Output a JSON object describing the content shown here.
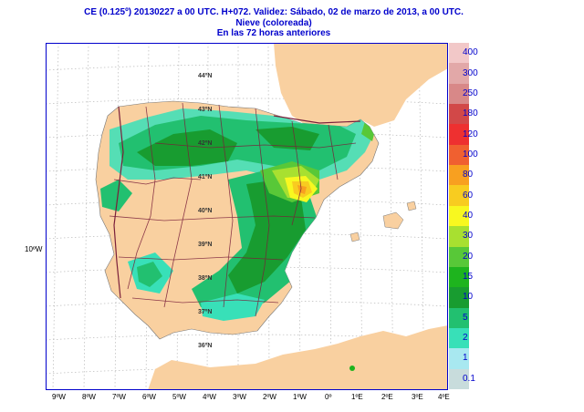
{
  "header": {
    "line1": "CE (0.125º) 20130227 a 00 UTC.  H+072. Validez: Sábado, 02 de marzo de 2013,  a  00 UTC.",
    "line2": "Nieve (coloreada)",
    "line3": "En las 72 horas anteriores"
  },
  "axes": {
    "x_ticks": [
      "9ºW",
      "8ºW",
      "7ºW",
      "6ºW",
      "5ºW",
      "4ºW",
      "3ºW",
      "2ºW",
      "1ºW",
      "0º",
      "1ºE",
      "2ºE",
      "3ºE",
      "4ºE"
    ],
    "y_label": "10ºW",
    "lat_labels": [
      "44ºN",
      "43ºN",
      "42ºN",
      "41ºN",
      "40ºN",
      "39ºN",
      "38ºN",
      "37ºN",
      "36ºN"
    ]
  },
  "legend": {
    "items": [
      {
        "label": "400",
        "color": "#f2c8c8"
      },
      {
        "label": "300",
        "color": "#e2a8a8"
      },
      {
        "label": "250",
        "color": "#d88888"
      },
      {
        "label": "180",
        "color": "#d24848"
      },
      {
        "label": "120",
        "color": "#ee3030"
      },
      {
        "label": "100",
        "color": "#f06030"
      },
      {
        "label": "80",
        "color": "#f8a020"
      },
      {
        "label": "60",
        "color": "#f8cc20"
      },
      {
        "label": "40",
        "color": "#f8f820"
      },
      {
        "label": "30",
        "color": "#a8e030"
      },
      {
        "label": "20",
        "color": "#58c838"
      },
      {
        "label": "15",
        "color": "#1eb41e"
      },
      {
        "label": "10",
        "color": "#189c30"
      },
      {
        "label": "5",
        "color": "#22c070"
      },
      {
        "label": "2",
        "color": "#38e0b8"
      },
      {
        "label": "1",
        "color": "#a8e8f0"
      },
      {
        "label": "0.1",
        "color": "#c8dcdc"
      }
    ]
  },
  "colors": {
    "land": "#f9d0a0",
    "sea": "#ffffff",
    "border": "#7a1f3a",
    "frame": "#0000cc"
  }
}
